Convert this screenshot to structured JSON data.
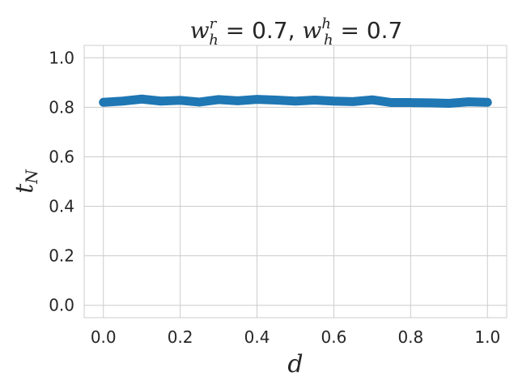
{
  "chart_data": {
    "type": "line",
    "title": {
      "parts": [
        {
          "text": "w",
          "italic": true
        },
        {
          "text": "r",
          "italic": true,
          "sup": true
        },
        {
          "text": "h",
          "italic": true,
          "sub": true
        },
        {
          "text": " = 0.7, ",
          "italic": false
        },
        {
          "text": "w",
          "italic": true
        },
        {
          "text": "h",
          "italic": true,
          "sup": true
        },
        {
          "text": "h",
          "italic": true,
          "sub": true
        },
        {
          "text": " = 0.7",
          "italic": false
        }
      ]
    },
    "xlabel": "d",
    "ylabel": {
      "main": "t",
      "sub": "N"
    },
    "xlim": [
      -0.05,
      1.05
    ],
    "ylim": [
      -0.05,
      1.05
    ],
    "xticks": [
      0.0,
      0.2,
      0.4,
      0.6,
      0.8,
      1.0
    ],
    "yticks": [
      0.0,
      0.2,
      0.4,
      0.6,
      0.8,
      1.0
    ],
    "xtick_labels": [
      "0.0",
      "0.2",
      "0.4",
      "0.6",
      "0.8",
      "1.0"
    ],
    "ytick_labels": [
      "0.0",
      "0.2",
      "0.4",
      "0.6",
      "0.8",
      "1.0"
    ],
    "grid": true,
    "series": [
      {
        "color": "#1f77b4",
        "x": [
          0.0,
          0.05,
          0.1,
          0.15,
          0.2,
          0.25,
          0.3,
          0.35,
          0.4,
          0.45,
          0.5,
          0.55,
          0.6,
          0.65,
          0.7,
          0.75,
          0.8,
          0.85,
          0.9,
          0.95,
          1.0
        ],
        "y": [
          0.82,
          0.825,
          0.833,
          0.825,
          0.828,
          0.821,
          0.831,
          0.826,
          0.832,
          0.829,
          0.825,
          0.829,
          0.825,
          0.823,
          0.83,
          0.819,
          0.819,
          0.818,
          0.816,
          0.822,
          0.82
        ]
      }
    ]
  }
}
